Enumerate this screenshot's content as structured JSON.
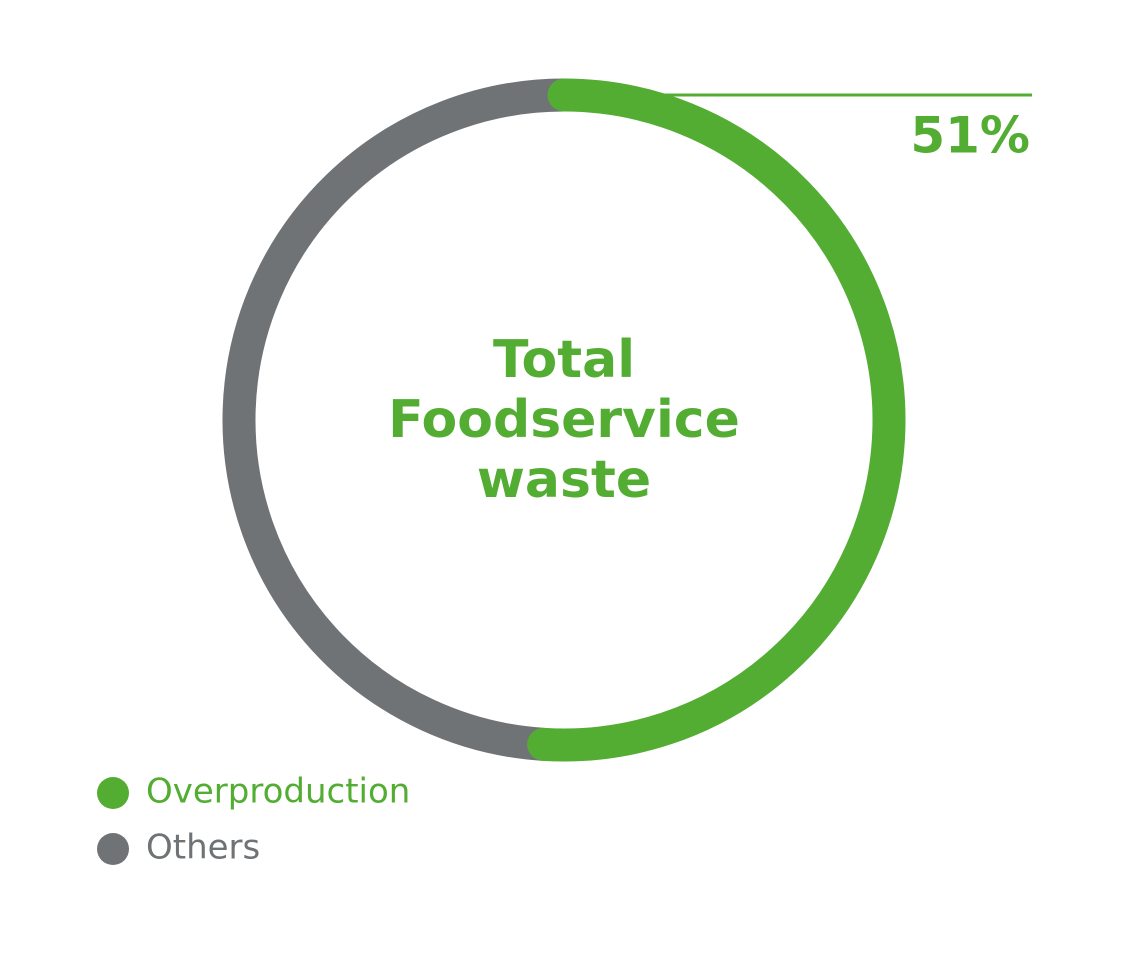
{
  "chart_data": {
    "type": "donut",
    "title": "Total Foodservice waste",
    "categories": [
      "Overproduction",
      "Others"
    ],
    "values": [
      51,
      49
    ],
    "value_labels": [
      "51%",
      null
    ],
    "colors": [
      "#53ad33",
      "#6f7375"
    ]
  }
}
